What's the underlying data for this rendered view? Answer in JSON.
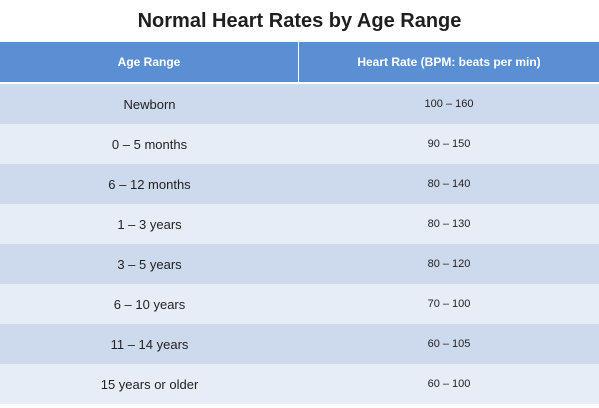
{
  "title": "Normal Heart Rates by Age Range",
  "table": {
    "headers": [
      "Age Range",
      "Heart Rate (BPM: beats per min)"
    ],
    "rows": [
      {
        "age": "Newborn",
        "rate": "100 – 160"
      },
      {
        "age": "0 – 5 months",
        "rate": "90 – 150"
      },
      {
        "age": "6 – 12 months",
        "rate": "80 – 140"
      },
      {
        "age": "1 – 3 years",
        "rate": "80 – 130"
      },
      {
        "age": "3 – 5 years",
        "rate": "80 – 120"
      },
      {
        "age": "6 – 10 years",
        "rate": "70 – 100"
      },
      {
        "age": "11 – 14 years",
        "rate": "60 – 105"
      },
      {
        "age": "15 years or older",
        "rate": "60 – 100"
      }
    ]
  },
  "colors": {
    "header_bg": "#5b8fd4",
    "row_odd": "#cdd9ec",
    "row_even": "#e7edf6"
  }
}
